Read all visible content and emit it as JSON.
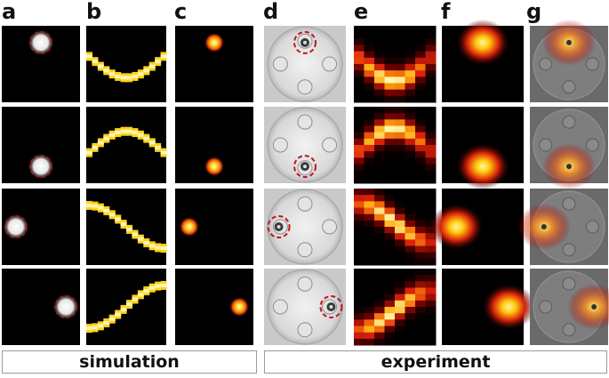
{
  "panel_labels": [
    "a",
    "b",
    "c",
    "d",
    "e",
    "f",
    "g"
  ],
  "captions": {
    "left": "simulation",
    "right": "experiment"
  },
  "rows": [
    {
      "source_position": "top"
    },
    {
      "source_position": "bottom"
    },
    {
      "source_position": "left"
    },
    {
      "source_position": "right"
    }
  ],
  "colors": {
    "background": "#000000",
    "dashed_circle": "#c0161b",
    "heat_low": "#000000",
    "heat_mid": "#e2250c",
    "heat_high": "#fff7a8"
  }
}
